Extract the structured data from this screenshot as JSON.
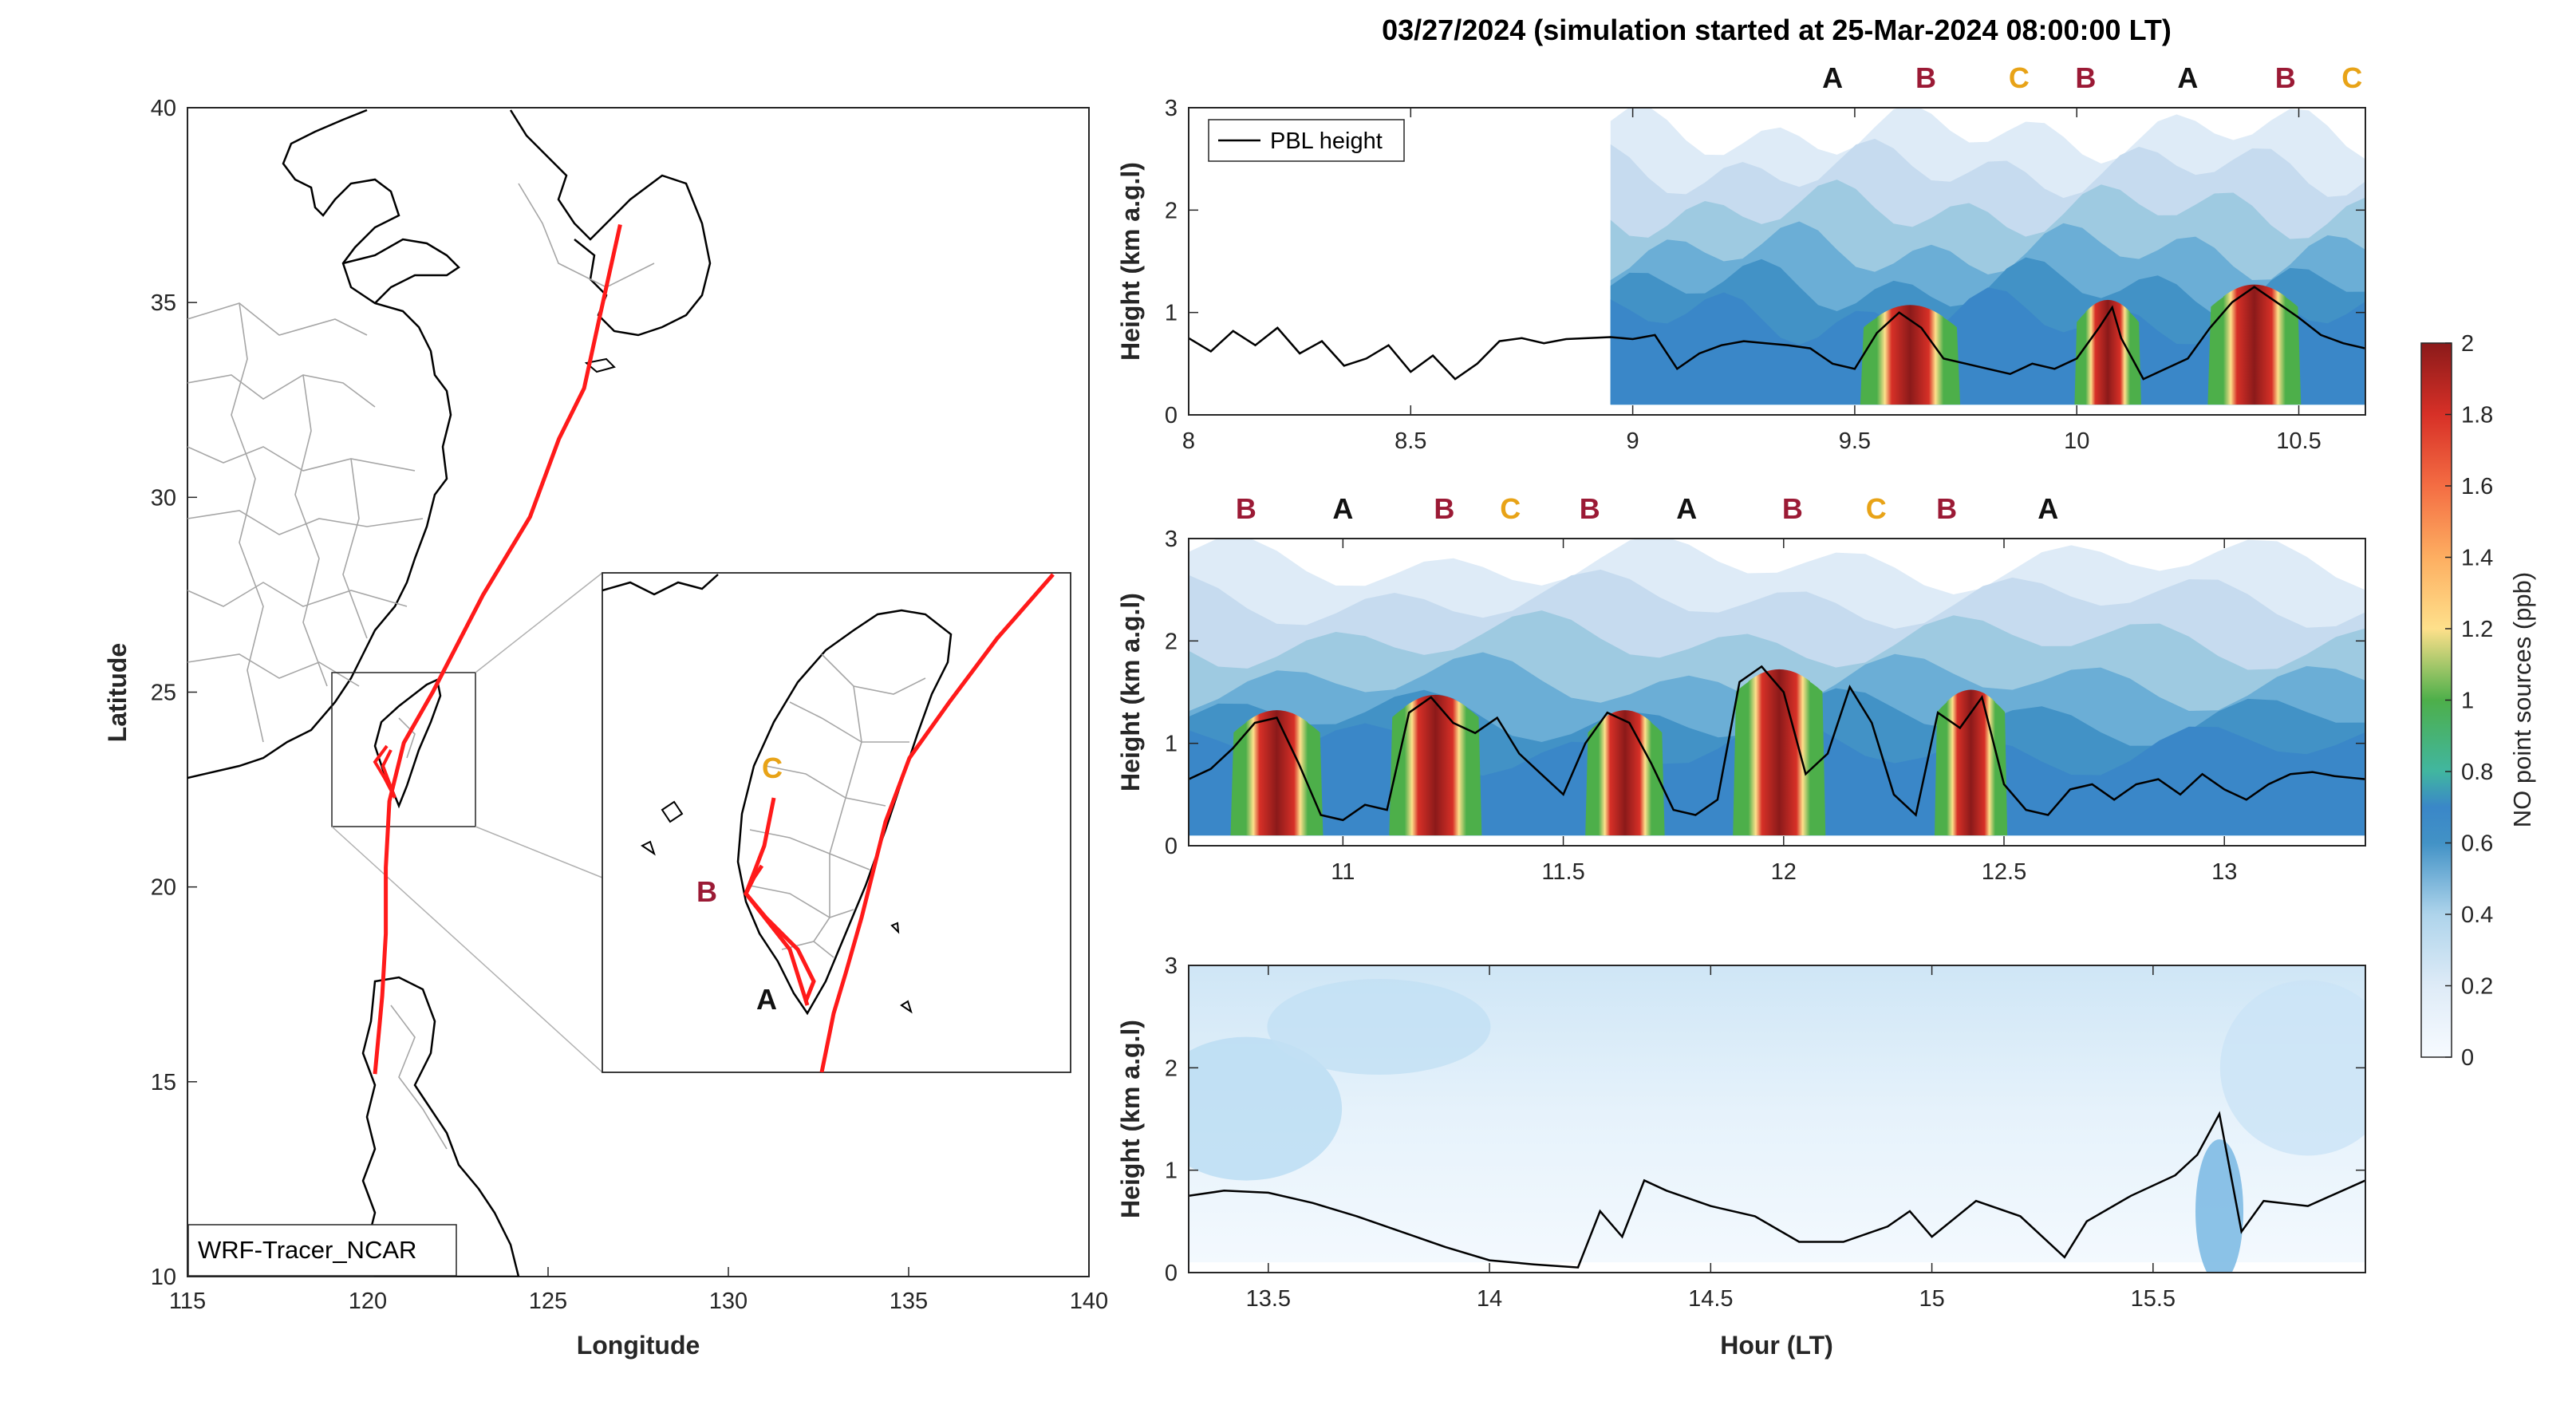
{
  "figure_title": "03/27/2024 (simulation started at 25-Mar-2024 08:00:00 LT)",
  "colors": {
    "A": "#111111",
    "B": "#9b1a35",
    "C": "#e8a317",
    "track": "#ff1a1a",
    "land_line": "#000000",
    "border_line": "#a6a6a6",
    "pbl_line": "#000000"
  },
  "colormap": [
    "#f7fbff",
    "#deebf7",
    "#c6dbef",
    "#9ecae1",
    "#6baed6",
    "#4292c6",
    "#3a87c8",
    "#41b6a0",
    "#4daf4a",
    "#a6d96a",
    "#fee08b",
    "#fdae61",
    "#f46d43",
    "#d73027",
    "#b2182b",
    "#8b1a1a"
  ],
  "map": {
    "xlabel": "Longitude",
    "ylabel": "Latitude",
    "xlim": [
      115,
      140
    ],
    "ylim": [
      10,
      40
    ],
    "xticks": [
      "115",
      "120",
      "125",
      "130",
      "135",
      "140"
    ],
    "yticks": [
      "10",
      "15",
      "20",
      "25",
      "30",
      "35",
      "40"
    ],
    "legend_label": "WRF-Tracer_NCAR",
    "inset_box_lonlat": {
      "lon": [
        119.3,
        122.3
      ],
      "lat": [
        21.5,
        25.6
      ]
    },
    "inset_markers": [
      {
        "label": "A",
        "color_key": "A"
      },
      {
        "label": "B",
        "color_key": "B"
      },
      {
        "label": "C",
        "color_key": "C"
      }
    ],
    "track": [
      [
        127.0,
        37.0
      ],
      [
        126.4,
        34.5
      ],
      [
        126.0,
        32.8
      ],
      [
        125.3,
        31.5
      ],
      [
        124.5,
        29.5
      ],
      [
        123.2,
        27.5
      ],
      [
        121.8,
        25.0
      ],
      [
        121.0,
        23.7
      ],
      [
        120.6,
        22.2
      ],
      [
        120.5,
        20.5
      ],
      [
        120.5,
        18.8
      ],
      [
        120.4,
        17.2
      ],
      [
        120.3,
        16.2
      ],
      [
        120.2,
        15.2
      ]
    ]
  },
  "chart_data": [
    {
      "type": "heatmap",
      "title": "",
      "xlabel": "",
      "ylabel": "Height (km a.g.l)",
      "xlim": [
        8.0,
        10.65
      ],
      "ylim": [
        0,
        3
      ],
      "xticks": [
        "8",
        "8.5",
        "9",
        "9.5",
        "10",
        "10.5"
      ],
      "yticks": [
        "0",
        "1",
        "2",
        "3"
      ],
      "legend": {
        "entries": [
          "PBL height"
        ],
        "placement": "top-left"
      },
      "z_units": "ppb",
      "pbl_height_km": [
        [
          8.0,
          0.75
        ],
        [
          8.05,
          0.62
        ],
        [
          8.1,
          0.82
        ],
        [
          8.15,
          0.68
        ],
        [
          8.2,
          0.85
        ],
        [
          8.25,
          0.6
        ],
        [
          8.3,
          0.72
        ],
        [
          8.35,
          0.48
        ],
        [
          8.4,
          0.55
        ],
        [
          8.45,
          0.68
        ],
        [
          8.5,
          0.42
        ],
        [
          8.55,
          0.58
        ],
        [
          8.6,
          0.35
        ],
        [
          8.65,
          0.5
        ],
        [
          8.7,
          0.72
        ],
        [
          8.75,
          0.75
        ],
        [
          8.8,
          0.7
        ],
        [
          8.85,
          0.74
        ],
        [
          8.9,
          0.75
        ],
        [
          8.95,
          0.76
        ],
        [
          9.0,
          0.74
        ],
        [
          9.05,
          0.78
        ],
        [
          9.1,
          0.45
        ],
        [
          9.15,
          0.6
        ],
        [
          9.2,
          0.68
        ],
        [
          9.25,
          0.72
        ],
        [
          9.3,
          0.7
        ],
        [
          9.35,
          0.68
        ],
        [
          9.4,
          0.65
        ],
        [
          9.45,
          0.5
        ],
        [
          9.5,
          0.45
        ],
        [
          9.55,
          0.8
        ],
        [
          9.6,
          1.0
        ],
        [
          9.65,
          0.85
        ],
        [
          9.7,
          0.55
        ],
        [
          9.75,
          0.5
        ],
        [
          9.8,
          0.45
        ],
        [
          9.85,
          0.4
        ],
        [
          9.9,
          0.5
        ],
        [
          9.95,
          0.45
        ],
        [
          10.0,
          0.55
        ],
        [
          10.05,
          0.85
        ],
        [
          10.08,
          1.05
        ],
        [
          10.1,
          0.75
        ],
        [
          10.15,
          0.35
        ],
        [
          10.2,
          0.45
        ],
        [
          10.25,
          0.55
        ],
        [
          10.3,
          0.85
        ],
        [
          10.35,
          1.1
        ],
        [
          10.4,
          1.25
        ],
        [
          10.45,
          1.1
        ],
        [
          10.5,
          0.95
        ],
        [
          10.55,
          0.78
        ],
        [
          10.6,
          0.7
        ],
        [
          10.65,
          0.65
        ]
      ],
      "plumes": [
        {
          "t0": 9.55,
          "t1": 9.7,
          "peak_km": 1.05
        },
        {
          "t0": 10.02,
          "t1": 10.12,
          "peak_km": 1.1
        },
        {
          "t0": 10.33,
          "t1": 10.47,
          "peak_km": 1.25
        }
      ],
      "background_start": 8.95,
      "markers": [
        {
          "label": "A",
          "x": 9.45,
          "color_key": "A"
        },
        {
          "label": "B",
          "x": 9.66,
          "color_key": "B"
        },
        {
          "label": "C",
          "x": 9.87,
          "color_key": "C"
        },
        {
          "label": "B",
          "x": 10.02,
          "color_key": "B"
        },
        {
          "label": "A",
          "x": 10.25,
          "color_key": "A"
        },
        {
          "label": "B",
          "x": 10.47,
          "color_key": "B"
        },
        {
          "label": "C",
          "x": 10.62,
          "color_key": "C"
        }
      ]
    },
    {
      "type": "heatmap",
      "title": "",
      "xlabel": "",
      "ylabel": "Height (km a.g.l)",
      "xlim": [
        10.65,
        13.32
      ],
      "ylim": [
        0,
        3
      ],
      "xticks": [
        "11",
        "11.5",
        "12",
        "12.5",
        "13"
      ],
      "yticks": [
        "0",
        "1",
        "2",
        "3"
      ],
      "z_units": "ppb",
      "pbl_height_km": [
        [
          10.65,
          0.65
        ],
        [
          10.7,
          0.75
        ],
        [
          10.75,
          0.95
        ],
        [
          10.8,
          1.2
        ],
        [
          10.85,
          1.25
        ],
        [
          10.9,
          0.8
        ],
        [
          10.95,
          0.3
        ],
        [
          11.0,
          0.25
        ],
        [
          11.05,
          0.4
        ],
        [
          11.1,
          0.35
        ],
        [
          11.15,
          1.3
        ],
        [
          11.2,
          1.45
        ],
        [
          11.25,
          1.2
        ],
        [
          11.3,
          1.1
        ],
        [
          11.35,
          1.25
        ],
        [
          11.4,
          0.9
        ],
        [
          11.45,
          0.7
        ],
        [
          11.5,
          0.5
        ],
        [
          11.55,
          1.0
        ],
        [
          11.6,
          1.3
        ],
        [
          11.65,
          1.2
        ],
        [
          11.7,
          0.8
        ],
        [
          11.75,
          0.35
        ],
        [
          11.8,
          0.3
        ],
        [
          11.85,
          0.45
        ],
        [
          11.9,
          1.6
        ],
        [
          11.95,
          1.75
        ],
        [
          12.0,
          1.5
        ],
        [
          12.05,
          0.7
        ],
        [
          12.1,
          0.9
        ],
        [
          12.15,
          1.55
        ],
        [
          12.2,
          1.2
        ],
        [
          12.25,
          0.5
        ],
        [
          12.3,
          0.3
        ],
        [
          12.35,
          1.3
        ],
        [
          12.4,
          1.15
        ],
        [
          12.45,
          1.45
        ],
        [
          12.5,
          0.6
        ],
        [
          12.55,
          0.35
        ],
        [
          12.6,
          0.3
        ],
        [
          12.65,
          0.55
        ],
        [
          12.7,
          0.6
        ],
        [
          12.75,
          0.45
        ],
        [
          12.8,
          0.6
        ],
        [
          12.85,
          0.65
        ],
        [
          12.9,
          0.5
        ],
        [
          12.95,
          0.7
        ],
        [
          13.0,
          0.55
        ],
        [
          13.05,
          0.45
        ],
        [
          13.1,
          0.6
        ],
        [
          13.15,
          0.7
        ],
        [
          13.2,
          0.72
        ],
        [
          13.25,
          0.68
        ],
        [
          13.32,
          0.65
        ]
      ],
      "plumes": [
        {
          "t0": 10.78,
          "t1": 10.92,
          "peak_km": 1.3
        },
        {
          "t0": 11.14,
          "t1": 11.28,
          "peak_km": 1.45
        },
        {
          "t0": 11.58,
          "t1": 11.7,
          "peak_km": 1.3
        },
        {
          "t0": 11.92,
          "t1": 12.06,
          "peak_km": 1.7
        },
        {
          "t0": 12.37,
          "t1": 12.48,
          "peak_km": 1.5
        }
      ],
      "background_start": 10.65,
      "markers": [
        {
          "label": "B",
          "x": 10.78,
          "color_key": "B"
        },
        {
          "label": "A",
          "x": 11.0,
          "color_key": "A"
        },
        {
          "label": "B",
          "x": 11.23,
          "color_key": "B"
        },
        {
          "label": "C",
          "x": 11.38,
          "color_key": "C"
        },
        {
          "label": "B",
          "x": 11.56,
          "color_key": "B"
        },
        {
          "label": "A",
          "x": 11.78,
          "color_key": "A"
        },
        {
          "label": "B",
          "x": 12.02,
          "color_key": "B"
        },
        {
          "label": "C",
          "x": 12.21,
          "color_key": "C"
        },
        {
          "label": "B",
          "x": 12.37,
          "color_key": "B"
        },
        {
          "label": "A",
          "x": 12.6,
          "color_key": "A"
        }
      ]
    },
    {
      "type": "heatmap",
      "title": "",
      "xlabel": "Hour (LT)",
      "ylabel": "Height (km a.g.l)",
      "xlim": [
        13.32,
        15.98
      ],
      "ylim": [
        0,
        3
      ],
      "xticks": [
        "13.5",
        "14",
        "14.5",
        "15",
        "15.5"
      ],
      "yticks": [
        "0",
        "1",
        "2",
        "3"
      ],
      "z_units": "ppb",
      "pbl_height_km": [
        [
          13.32,
          0.75
        ],
        [
          13.4,
          0.8
        ],
        [
          13.5,
          0.78
        ],
        [
          13.6,
          0.68
        ],
        [
          13.7,
          0.55
        ],
        [
          13.8,
          0.4
        ],
        [
          13.9,
          0.25
        ],
        [
          14.0,
          0.12
        ],
        [
          14.1,
          0.08
        ],
        [
          14.2,
          0.05
        ],
        [
          14.25,
          0.6
        ],
        [
          14.3,
          0.35
        ],
        [
          14.35,
          0.9
        ],
        [
          14.4,
          0.8
        ],
        [
          14.5,
          0.65
        ],
        [
          14.6,
          0.55
        ],
        [
          14.7,
          0.3
        ],
        [
          14.8,
          0.3
        ],
        [
          14.9,
          0.45
        ],
        [
          14.95,
          0.6
        ],
        [
          15.0,
          0.35
        ],
        [
          15.1,
          0.7
        ],
        [
          15.2,
          0.55
        ],
        [
          15.3,
          0.15
        ],
        [
          15.35,
          0.5
        ],
        [
          15.45,
          0.75
        ],
        [
          15.55,
          0.95
        ],
        [
          15.6,
          1.15
        ],
        [
          15.65,
          1.55
        ],
        [
          15.7,
          0.4
        ],
        [
          15.75,
          0.7
        ],
        [
          15.85,
          0.65
        ],
        [
          15.98,
          0.9
        ]
      ],
      "plumes": [],
      "background_start": 13.32,
      "markers": []
    }
  ],
  "colorbar": {
    "label": "NO point sources (ppb)",
    "range": [
      0,
      2
    ],
    "ticks": [
      "0",
      "0.2",
      "0.4",
      "0.6",
      "0.8",
      "1",
      "1.2",
      "1.4",
      "1.6",
      "1.8",
      "2"
    ]
  }
}
